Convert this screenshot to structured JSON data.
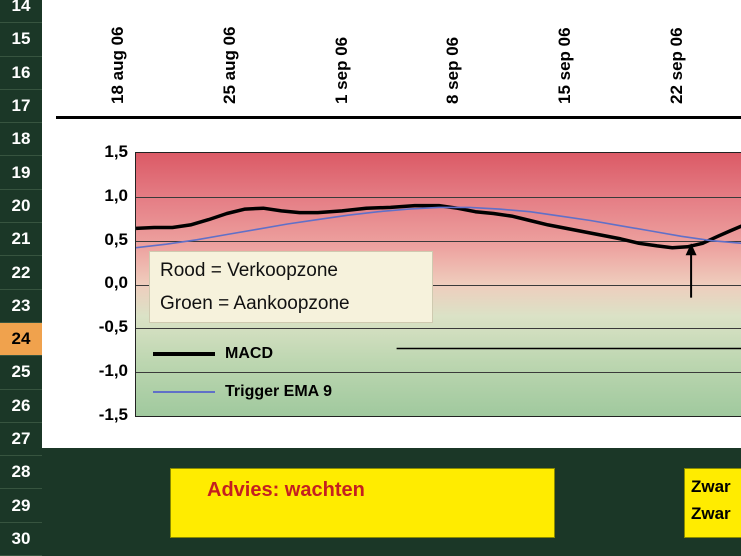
{
  "colors": {
    "background": "#1b3727",
    "row_highlight": "#f0a24d",
    "yellow_box": "#ffec00",
    "advice_text": "#c42020",
    "sell_zone_red": "#db5a66",
    "buy_zone_green": "#a0c99e",
    "trigger_blue": "#6070c8",
    "macd_black": "#000000"
  },
  "row_header": {
    "rows": [
      "14",
      "15",
      "16",
      "17",
      "18",
      "19",
      "20",
      "21",
      "22",
      "23",
      "24",
      "25",
      "26",
      "27",
      "28",
      "29",
      "30"
    ],
    "highlighted": "24"
  },
  "chart_data": {
    "type": "line",
    "title": "",
    "x_labels": [
      "18 aug 06",
      "25 aug 06",
      "1 sep 06",
      "8 sep 06",
      "15 sep 06",
      "22 sep 06"
    ],
    "y_ticks": [
      "1,5",
      "1,0",
      "0,5",
      "0,0",
      "-0,5",
      "-1,0",
      "-1,5"
    ],
    "ylim": [
      -1.5,
      1.5
    ],
    "grid": "horizontal",
    "gridline_values": [
      1.0,
      0.5,
      0.0,
      -0.5,
      -1.0
    ],
    "legend_position": "inside-lower-left",
    "legend": [
      {
        "label": "MACD"
      },
      {
        "label": "Trigger EMA 9"
      }
    ],
    "zones_note": {
      "line1": "Rood = Verkoopzone",
      "line2": "Groen = Aankoopzone"
    },
    "series": [
      {
        "name": "MACD",
        "color": "#000000",
        "width": 3.5,
        "points": [
          [
            0.0,
            0.64
          ],
          [
            0.03,
            0.65
          ],
          [
            0.06,
            0.65
          ],
          [
            0.09,
            0.68
          ],
          [
            0.12,
            0.74
          ],
          [
            0.15,
            0.81
          ],
          [
            0.18,
            0.86
          ],
          [
            0.21,
            0.87
          ],
          [
            0.24,
            0.84
          ],
          [
            0.27,
            0.82
          ],
          [
            0.3,
            0.82
          ],
          [
            0.34,
            0.84
          ],
          [
            0.38,
            0.87
          ],
          [
            0.42,
            0.88
          ],
          [
            0.46,
            0.9
          ],
          [
            0.5,
            0.9
          ],
          [
            0.53,
            0.87
          ],
          [
            0.56,
            0.83
          ],
          [
            0.59,
            0.81
          ],
          [
            0.62,
            0.78
          ],
          [
            0.65,
            0.73
          ],
          [
            0.68,
            0.68
          ],
          [
            0.71,
            0.64
          ],
          [
            0.74,
            0.6
          ],
          [
            0.77,
            0.56
          ],
          [
            0.8,
            0.52
          ],
          [
            0.83,
            0.47
          ],
          [
            0.86,
            0.44
          ],
          [
            0.885,
            0.42
          ],
          [
            0.91,
            0.43
          ],
          [
            0.935,
            0.47
          ],
          [
            0.96,
            0.55
          ],
          [
            0.98,
            0.61
          ],
          [
            1.0,
            0.67
          ]
        ]
      },
      {
        "name": "Trigger EMA 9",
        "color": "#6070c8",
        "width": 1.6,
        "points": [
          [
            0.0,
            0.42
          ],
          [
            0.05,
            0.46
          ],
          [
            0.1,
            0.51
          ],
          [
            0.15,
            0.57
          ],
          [
            0.2,
            0.63
          ],
          [
            0.25,
            0.69
          ],
          [
            0.3,
            0.74
          ],
          [
            0.35,
            0.79
          ],
          [
            0.4,
            0.83
          ],
          [
            0.45,
            0.86
          ],
          [
            0.5,
            0.88
          ],
          [
            0.55,
            0.88
          ],
          [
            0.6,
            0.86
          ],
          [
            0.65,
            0.83
          ],
          [
            0.7,
            0.78
          ],
          [
            0.75,
            0.73
          ],
          [
            0.8,
            0.67
          ],
          [
            0.85,
            0.61
          ],
          [
            0.9,
            0.55
          ],
          [
            0.95,
            0.5
          ],
          [
            1.0,
            0.47
          ]
        ]
      }
    ],
    "annotations": {
      "up_arrow": {
        "x_frac": 0.916,
        "value_from": -0.15,
        "value_to": 0.47
      },
      "partial_hline": {
        "value": -0.73,
        "x_frac_start": 0.43,
        "x_frac_end": 1.0
      }
    }
  },
  "advice_box": {
    "text": "Advies: wachten"
  },
  "right_box": {
    "line1": "Zwar",
    "line2": "Zwar"
  }
}
